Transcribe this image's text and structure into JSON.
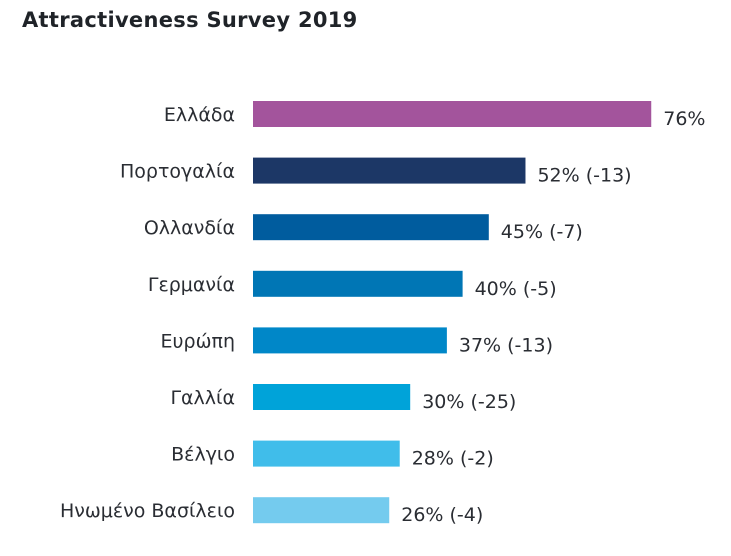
{
  "chart_data": {
    "type": "bar",
    "orientation": "horizontal",
    "title": "Attractiveness Survey 2019",
    "xlabel": "",
    "ylabel": "",
    "xlim": [
      0,
      100
    ],
    "grid": false,
    "legend": "none",
    "categories": [
      "Ελλάδα",
      "Πορτογαλία",
      "Ολλανδία",
      "Γερμανία",
      "Ευρώπη",
      "Γαλλία",
      "Βέλγιο",
      "Ηνωμένο Βασίλειο"
    ],
    "values": [
      76,
      52,
      45,
      40,
      37,
      30,
      28,
      26
    ],
    "changes": [
      null,
      -13,
      -7,
      -5,
      -13,
      -25,
      -2,
      -4
    ],
    "data_labels": [
      "76%",
      "52% (-13)",
      "45% (-7)",
      "40% (-5)",
      "37% (-13)",
      "30% (-25)",
      "28% (-2)",
      "26% (-4)"
    ],
    "colors": [
      "#a3549c",
      "#1c3766",
      "#005c9e",
      "#0076b5",
      "#0087c8",
      "#00a3d9",
      "#40bdea",
      "#74cbee"
    ]
  }
}
